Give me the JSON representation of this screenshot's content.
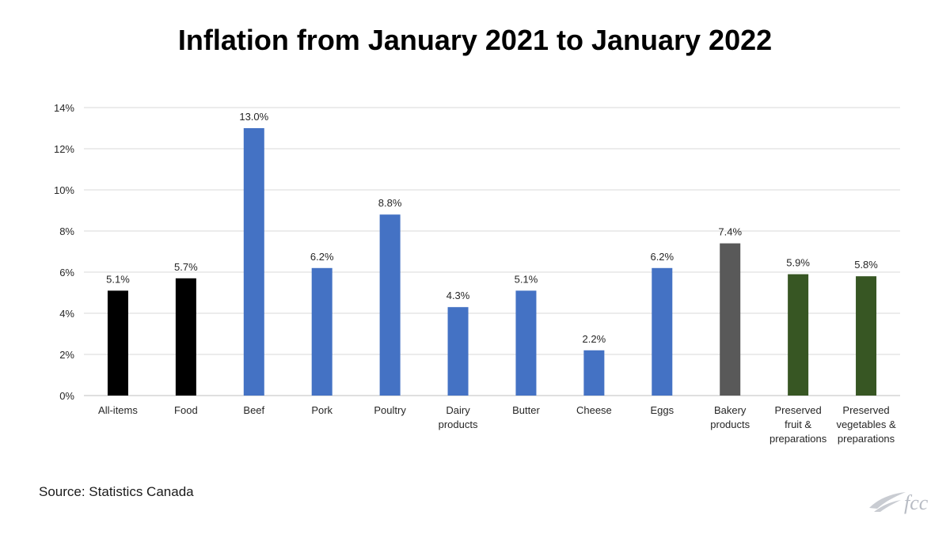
{
  "chart_data": {
    "type": "bar",
    "title": "Inflation from January 2021 to January 2022",
    "categories": [
      [
        "All-items"
      ],
      [
        "Food"
      ],
      [
        "Beef"
      ],
      [
        "Pork"
      ],
      [
        "Poultry"
      ],
      [
        "Dairy",
        "products"
      ],
      [
        "Butter"
      ],
      [
        "Cheese"
      ],
      [
        "Eggs"
      ],
      [
        "Bakery",
        "products"
      ],
      [
        "Preserved",
        "fruit &",
        "preparations"
      ],
      [
        "Preserved",
        "vegetables &",
        "preparations"
      ]
    ],
    "values": [
      5.1,
      5.7,
      13.0,
      6.2,
      8.8,
      4.3,
      5.1,
      2.2,
      6.2,
      7.4,
      5.9,
      5.8
    ],
    "data_labels": [
      "5.1%",
      "5.7%",
      "13.0%",
      "6.2%",
      "8.8%",
      "4.3%",
      "5.1%",
      "2.2%",
      "6.2%",
      "7.4%",
      "5.9%",
      "5.8%"
    ],
    "bar_colors": [
      "#000000",
      "#000000",
      "#4472c4",
      "#4472c4",
      "#4472c4",
      "#4472c4",
      "#4472c4",
      "#4472c4",
      "#4472c4",
      "#595959",
      "#375623",
      "#375623"
    ],
    "ylim": [
      0,
      14
    ],
    "yticks": [
      0,
      2,
      4,
      6,
      8,
      10,
      12,
      14
    ],
    "ytick_labels": [
      "0%",
      "2%",
      "4%",
      "6%",
      "8%",
      "10%",
      "12%",
      "14%"
    ],
    "xlabel": "",
    "ylabel": "",
    "grid": true,
    "legend": "none"
  },
  "source": "Source: Statistics Canada",
  "logo": {
    "icon": "fcc-logo-icon",
    "text": "fcc",
    "color": "#b8bcc4"
  }
}
